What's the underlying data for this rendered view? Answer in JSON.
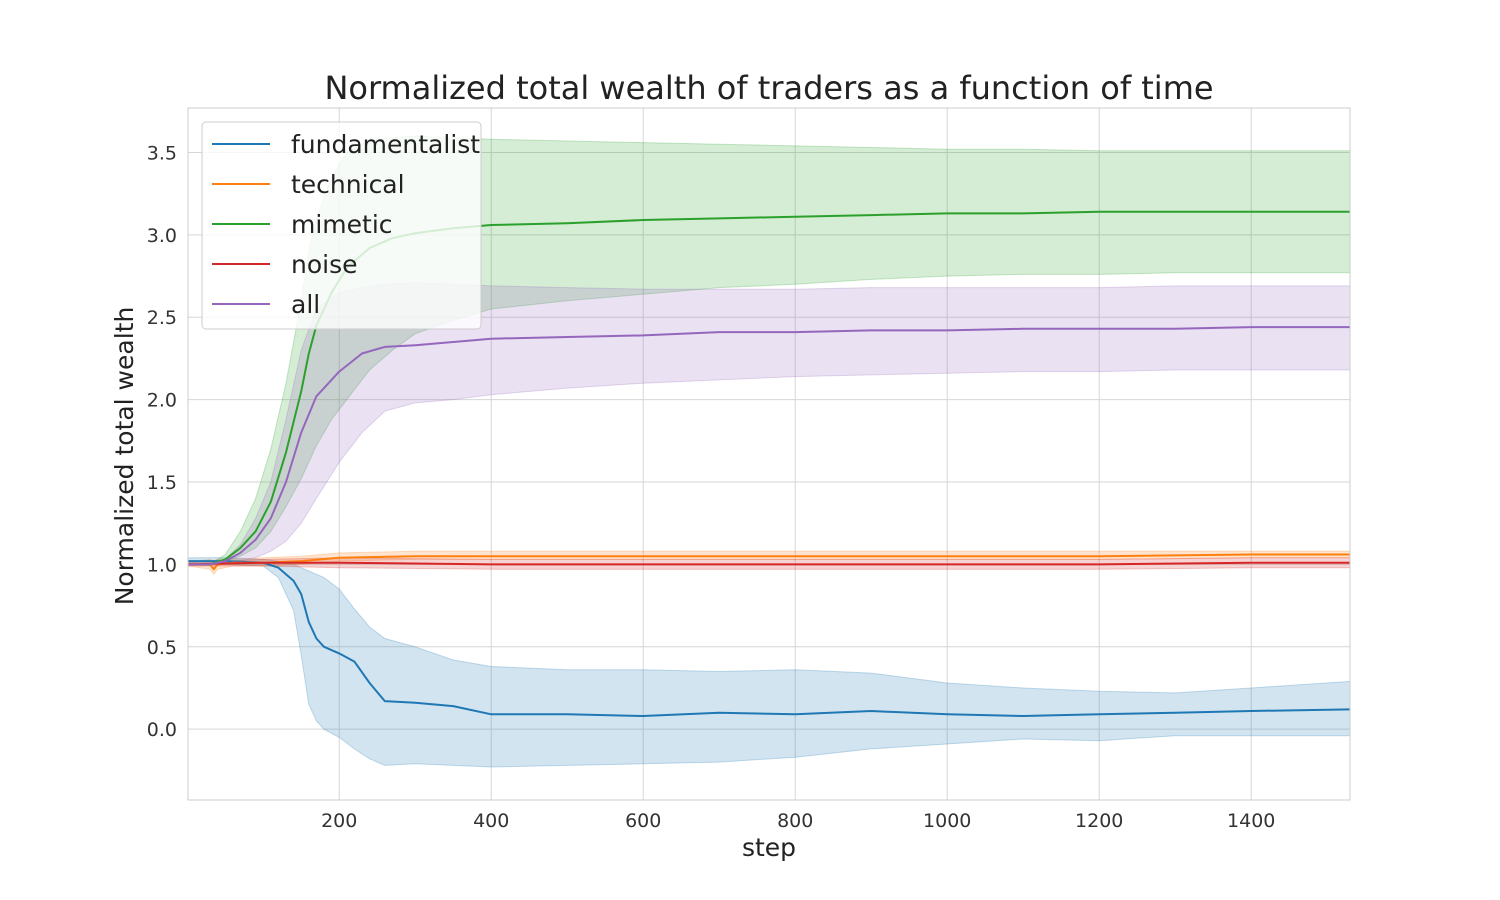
{
  "chart_data": {
    "type": "line",
    "title": "Normalized total wealth of traders as a function of time",
    "xlabel": "step",
    "ylabel": "Normalized total wealth",
    "xlim": [
      1,
      1530
    ],
    "ylim": [
      -0.43,
      3.77
    ],
    "xticks": [
      200,
      400,
      600,
      800,
      1000,
      1200,
      1400
    ],
    "yticks": [
      0.0,
      0.5,
      1.0,
      1.5,
      2.0,
      2.5,
      3.0,
      3.5
    ],
    "xtick_labels": [
      "200",
      "400",
      "600",
      "800",
      "1000",
      "1200",
      "1400"
    ],
    "ytick_labels": [
      "0.0",
      "0.5",
      "1.0",
      "1.5",
      "2.0",
      "2.5",
      "3.0",
      "3.5"
    ],
    "grid": true,
    "legend_position": "top-left",
    "series": [
      {
        "name": "fundamentalist",
        "color": "#1f77b4",
        "x": [
          1,
          50,
          100,
          120,
          140,
          150,
          160,
          170,
          180,
          200,
          220,
          240,
          260,
          300,
          350,
          400,
          500,
          600,
          700,
          800,
          900,
          1000,
          1100,
          1200,
          1300,
          1400,
          1530
        ],
        "y": [
          1.02,
          1.02,
          1.01,
          0.98,
          0.9,
          0.82,
          0.65,
          0.55,
          0.5,
          0.46,
          0.41,
          0.28,
          0.17,
          0.16,
          0.14,
          0.09,
          0.09,
          0.08,
          0.1,
          0.09,
          0.11,
          0.09,
          0.08,
          0.09,
          0.1,
          0.11,
          0.12
        ],
        "lower": [
          1.0,
          1.0,
          0.99,
          0.92,
          0.72,
          0.45,
          0.15,
          0.05,
          0.0,
          -0.05,
          -0.12,
          -0.18,
          -0.22,
          -0.21,
          -0.22,
          -0.23,
          -0.22,
          -0.21,
          -0.2,
          -0.17,
          -0.12,
          -0.09,
          -0.06,
          -0.07,
          -0.04,
          -0.04,
          -0.04
        ],
        "upper": [
          1.04,
          1.04,
          1.03,
          1.02,
          1.0,
          0.98,
          0.96,
          0.94,
          0.92,
          0.85,
          0.73,
          0.62,
          0.55,
          0.5,
          0.42,
          0.38,
          0.36,
          0.36,
          0.35,
          0.36,
          0.34,
          0.28,
          0.25,
          0.23,
          0.22,
          0.25,
          0.29
        ]
      },
      {
        "name": "technical",
        "color": "#ff7f0e",
        "x": [
          1,
          30,
          35,
          40,
          60,
          100,
          150,
          200,
          300,
          400,
          600,
          800,
          1000,
          1200,
          1400,
          1530
        ],
        "y": [
          1.0,
          1.0,
          0.97,
          1.0,
          1.01,
          1.01,
          1.02,
          1.04,
          1.05,
          1.05,
          1.05,
          1.05,
          1.05,
          1.05,
          1.06,
          1.06
        ],
        "lower": [
          0.99,
          0.97,
          0.94,
          0.97,
          0.99,
          0.99,
          1.0,
          1.02,
          1.03,
          1.03,
          1.03,
          1.03,
          1.03,
          1.03,
          1.04,
          1.04
        ],
        "upper": [
          1.01,
          1.03,
          1.02,
          1.03,
          1.03,
          1.04,
          1.05,
          1.07,
          1.08,
          1.08,
          1.08,
          1.08,
          1.08,
          1.08,
          1.08,
          1.08
        ]
      },
      {
        "name": "mimetic",
        "color": "#2ca02c",
        "x": [
          1,
          30,
          50,
          70,
          90,
          110,
          130,
          150,
          160,
          170,
          190,
          210,
          240,
          270,
          300,
          350,
          400,
          500,
          600,
          700,
          800,
          900,
          1000,
          1100,
          1200,
          1300,
          1400,
          1530
        ],
        "y": [
          1.0,
          1.0,
          1.03,
          1.1,
          1.2,
          1.38,
          1.68,
          2.05,
          2.28,
          2.45,
          2.65,
          2.8,
          2.92,
          2.98,
          3.01,
          3.04,
          3.06,
          3.07,
          3.09,
          3.1,
          3.11,
          3.12,
          3.13,
          3.13,
          3.14,
          3.14,
          3.14,
          3.14
        ],
        "lower": [
          1.0,
          1.0,
          1.02,
          1.05,
          1.1,
          1.2,
          1.35,
          1.52,
          1.62,
          1.72,
          1.88,
          2.0,
          2.18,
          2.3,
          2.4,
          2.48,
          2.55,
          2.6,
          2.64,
          2.68,
          2.7,
          2.73,
          2.75,
          2.76,
          2.76,
          2.77,
          2.77,
          2.77
        ],
        "upper": [
          1.0,
          1.0,
          1.06,
          1.2,
          1.4,
          1.7,
          2.1,
          2.6,
          2.9,
          3.1,
          3.35,
          3.5,
          3.57,
          3.59,
          3.6,
          3.59,
          3.58,
          3.57,
          3.56,
          3.55,
          3.54,
          3.53,
          3.52,
          3.52,
          3.51,
          3.51,
          3.51,
          3.51
        ]
      },
      {
        "name": "noise",
        "color": "#d62728",
        "x": [
          1,
          100,
          200,
          400,
          600,
          800,
          1000,
          1200,
          1400,
          1530
        ],
        "y": [
          1.0,
          1.01,
          1.01,
          1.0,
          1.0,
          1.0,
          1.0,
          1.0,
          1.01,
          1.01
        ],
        "lower": [
          0.99,
          0.99,
          0.98,
          0.97,
          0.97,
          0.97,
          0.97,
          0.97,
          0.98,
          0.98
        ],
        "upper": [
          1.01,
          1.03,
          1.04,
          1.03,
          1.03,
          1.03,
          1.03,
          1.03,
          1.04,
          1.04
        ]
      },
      {
        "name": "all",
        "color": "#9467bd",
        "x": [
          1,
          30,
          50,
          70,
          90,
          110,
          130,
          150,
          170,
          200,
          230,
          260,
          300,
          350,
          400,
          500,
          600,
          700,
          800,
          900,
          1000,
          1100,
          1200,
          1300,
          1400,
          1530
        ],
        "y": [
          1.0,
          1.0,
          1.02,
          1.07,
          1.15,
          1.28,
          1.5,
          1.8,
          2.02,
          2.17,
          2.28,
          2.32,
          2.33,
          2.35,
          2.37,
          2.38,
          2.39,
          2.41,
          2.41,
          2.42,
          2.42,
          2.43,
          2.43,
          2.43,
          2.44,
          2.44
        ],
        "lower": [
          1.0,
          1.0,
          1.01,
          1.02,
          1.04,
          1.08,
          1.14,
          1.25,
          1.4,
          1.62,
          1.8,
          1.93,
          1.98,
          2.0,
          2.03,
          2.07,
          2.1,
          2.12,
          2.14,
          2.15,
          2.16,
          2.17,
          2.17,
          2.18,
          2.18,
          2.18
        ],
        "upper": [
          1.0,
          1.0,
          1.03,
          1.12,
          1.28,
          1.5,
          1.88,
          2.3,
          2.55,
          2.65,
          2.68,
          2.7,
          2.71,
          2.7,
          2.69,
          2.68,
          2.67,
          2.67,
          2.67,
          2.68,
          2.68,
          2.68,
          2.68,
          2.69,
          2.69,
          2.69
        ]
      }
    ]
  }
}
